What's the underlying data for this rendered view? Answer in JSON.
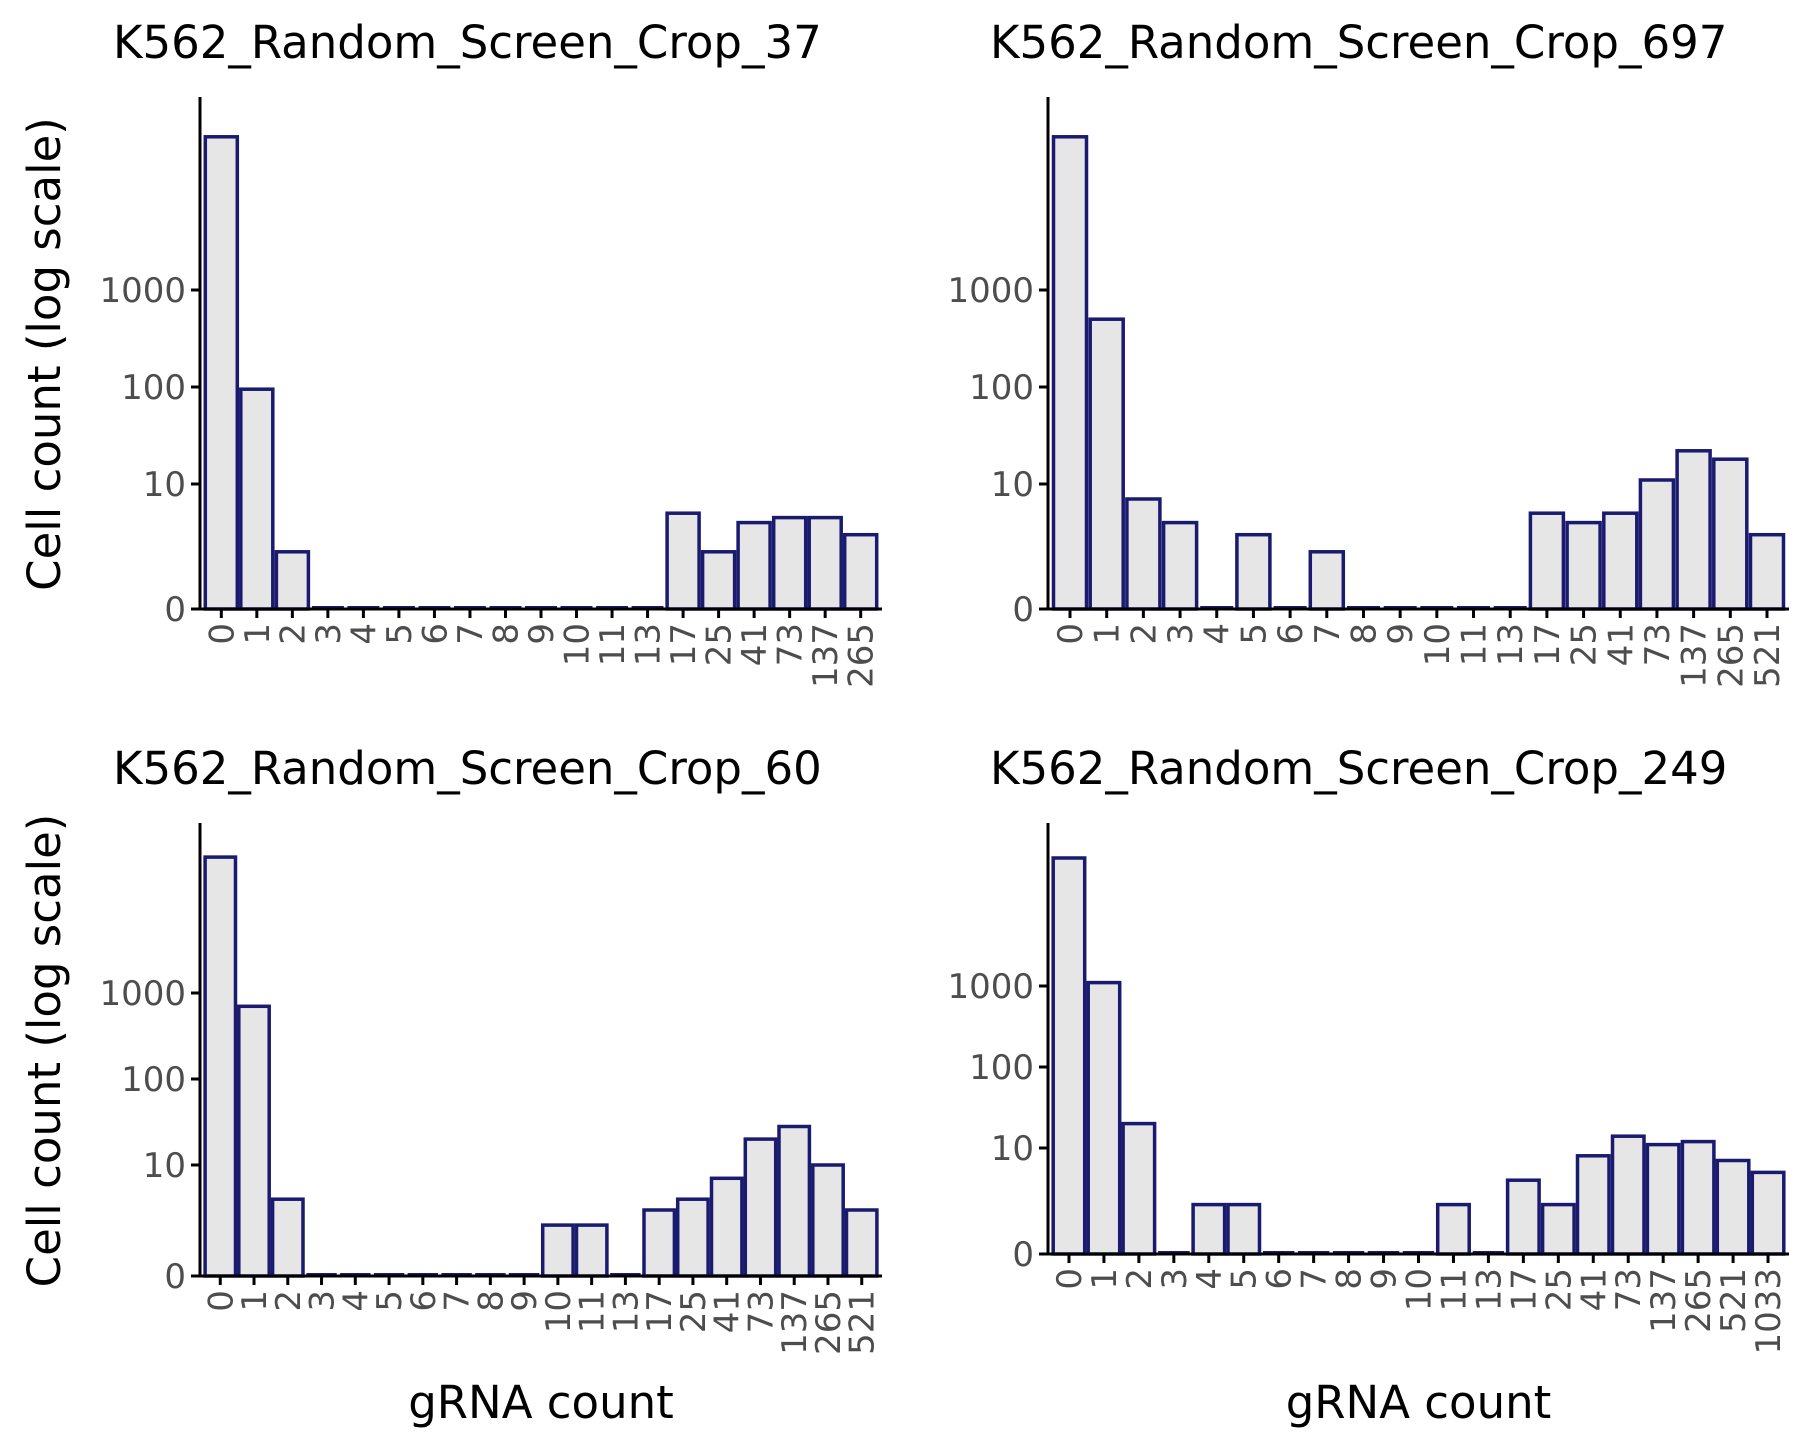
{
  "chart_data": [
    {
      "type": "bar",
      "title": "K562_Random_Screen_Crop_37",
      "xlabel": "",
      "ylabel": "Cell count (log scale)",
      "y_scale": "pseudo-log",
      "y_ticks": [
        "0",
        "10",
        "100",
        "1000"
      ],
      "categories": [
        "0",
        "1",
        "2",
        "3",
        "4",
        "5",
        "6",
        "7",
        "8",
        "9",
        "10",
        "11",
        "13",
        "17",
        "25",
        "41",
        "73",
        "137",
        "265"
      ],
      "values": [
        38000,
        95,
        2,
        0,
        0,
        0,
        0,
        0,
        0,
        0,
        0,
        0,
        0,
        5,
        2,
        4,
        4.5,
        4.5,
        3
      ]
    },
    {
      "type": "bar",
      "title": "K562_Random_Screen_Crop_697",
      "xlabel": "",
      "ylabel": "",
      "y_scale": "pseudo-log",
      "y_ticks": [
        "0",
        "10",
        "100",
        "1000"
      ],
      "categories": [
        "0",
        "1",
        "2",
        "3",
        "4",
        "5",
        "6",
        "7",
        "8",
        "9",
        "10",
        "11",
        "13",
        "17",
        "25",
        "41",
        "73",
        "137",
        "265",
        "521"
      ],
      "values": [
        38000,
        500,
        7,
        4,
        0,
        3,
        0,
        2,
        0,
        0,
        0,
        0,
        0,
        5,
        4,
        5,
        11,
        22,
        18,
        3
      ]
    },
    {
      "type": "bar",
      "title": "K562_Random_Screen_Crop_60",
      "xlabel": "gRNA count",
      "ylabel": "Cell count (log scale)",
      "y_scale": "pseudo-log",
      "y_ticks": [
        "0",
        "10",
        "100",
        "1000"
      ],
      "categories": [
        "0",
        "1",
        "2",
        "3",
        "4",
        "5",
        "6",
        "7",
        "8",
        "9",
        "10",
        "11",
        "13",
        "17",
        "25",
        "41",
        "73",
        "137",
        "265",
        "521"
      ],
      "values": [
        38000,
        700,
        4,
        0,
        0,
        0,
        0,
        0,
        0,
        0,
        2,
        2,
        0,
        3,
        4,
        7,
        20,
        28,
        10,
        3
      ]
    },
    {
      "type": "bar",
      "title": "K562_Random_Screen_Crop_249",
      "xlabel": "gRNA count",
      "ylabel": "",
      "y_scale": "pseudo-log",
      "y_ticks": [
        "0",
        "10",
        "100",
        "1000"
      ],
      "categories": [
        "0",
        "1",
        "2",
        "3",
        "4",
        "5",
        "6",
        "7",
        "8",
        "9",
        "10",
        "11",
        "13",
        "17",
        "25",
        "41",
        "73",
        "137",
        "265",
        "521",
        "1033"
      ],
      "values": [
        38000,
        1100,
        20,
        0,
        2,
        2,
        0,
        0,
        0,
        0,
        0,
        2,
        0,
        4,
        2,
        8,
        14,
        11,
        12,
        7,
        5
      ]
    }
  ],
  "colors": {
    "bar_fill": "#e6e6e6",
    "bar_stroke": "#1a1a6e",
    "axis": "#000000",
    "tick_text": "#4d4d4d"
  }
}
